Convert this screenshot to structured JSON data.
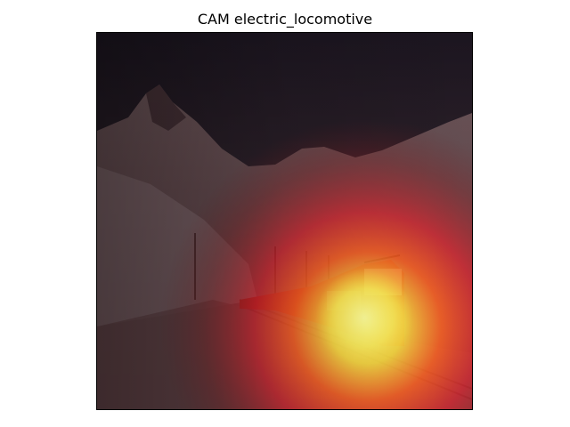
{
  "figure": {
    "title": "CAM electric_locomotive"
  },
  "image": {
    "subject": "electric_locomotive",
    "scene": "red electric train on a snowy mountain railway",
    "overlay": "class activation heatmap",
    "colors": {
      "sky": "#1a1c28",
      "mountain": "#5a4548",
      "snow": "#c8b2b2",
      "heat_low": "#4a1818",
      "heat_mid": "#e0282a",
      "heat_high": "#ffff60",
      "train": "#9a2a22"
    }
  }
}
